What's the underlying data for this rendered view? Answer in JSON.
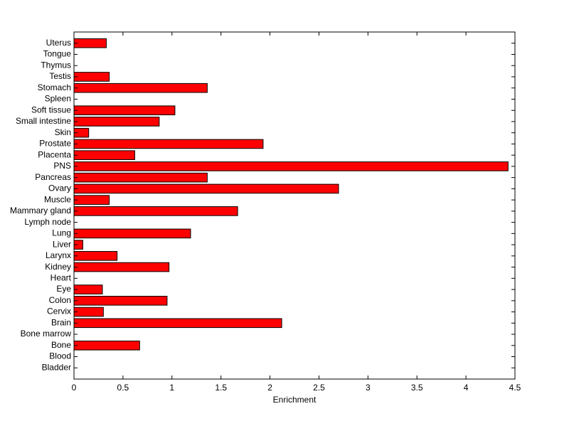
{
  "chart_data": {
    "type": "barh",
    "x_label": "Enrichment",
    "categories": [
      "Bladder",
      "Blood",
      "Bone",
      "Bone marrow",
      "Brain",
      "Cervix",
      "Colon",
      "Eye",
      "Heart",
      "Kidney",
      "Larynx",
      "Liver",
      "Lung",
      "Lymph node",
      "Mammary gland",
      "Muscle",
      "Ovary",
      "Pancreas",
      "PNS",
      "Placenta",
      "Prostate",
      "Skin",
      "Small intestine",
      "Soft tissue",
      "Spleen",
      "Stomach",
      "Testis",
      "Thymus",
      "Tongue",
      "Uterus"
    ],
    "values": [
      0,
      0,
      0.67,
      0,
      2.12,
      0.3,
      0.95,
      0.29,
      0,
      0.97,
      0.44,
      0.09,
      1.19,
      0,
      1.67,
      0.36,
      2.7,
      1.36,
      4.43,
      0.62,
      1.93,
      0.15,
      0.87,
      1.03,
      0,
      1.36,
      0.36,
      0,
      0,
      0.33
    ],
    "color": "#ff0000",
    "xlim": [
      0,
      4.5
    ],
    "xticks": [
      0,
      0.5,
      1,
      1.5,
      2,
      2.5,
      3,
      3.5,
      4,
      4.5
    ]
  }
}
